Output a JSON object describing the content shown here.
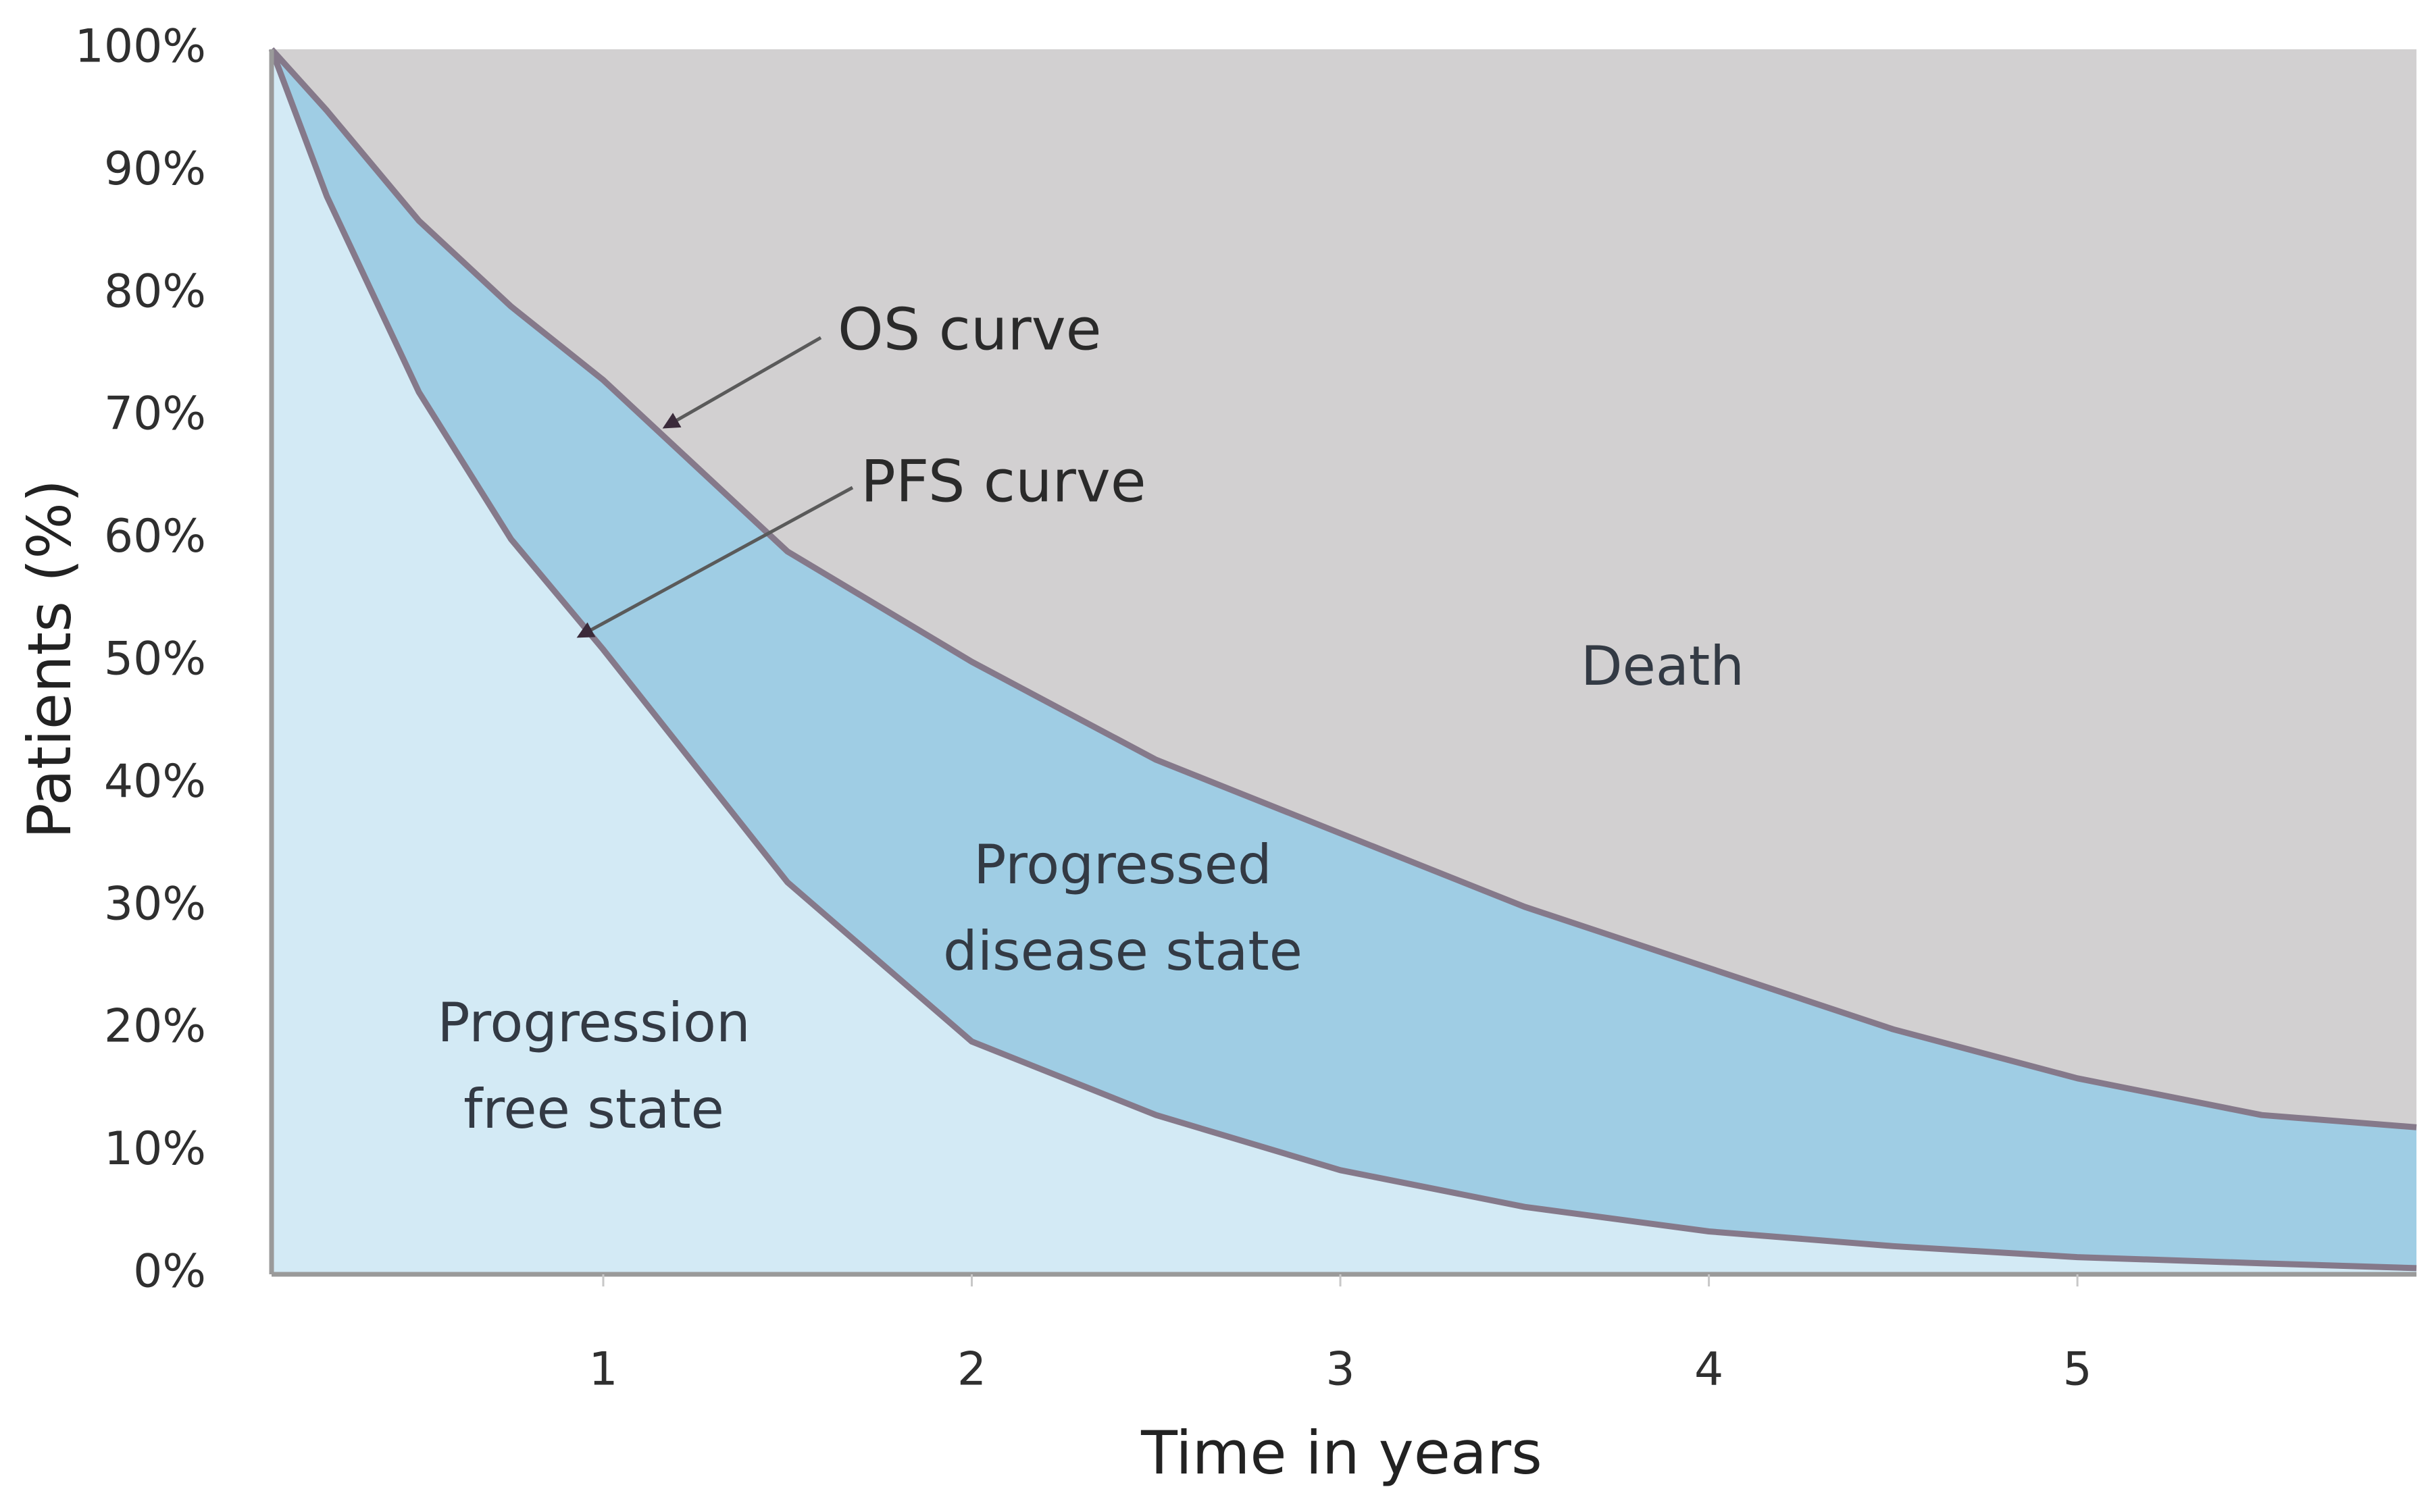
{
  "chart_data": {
    "type": "area",
    "x_label": "Time in years",
    "y_label": "Patients (%)",
    "x": [
      0.1,
      0.25,
      0.5,
      0.75,
      1,
      1.5,
      2,
      2.5,
      3,
      3.5,
      4,
      4.5,
      5,
      5.5,
      5.92
    ],
    "series": [
      {
        "name": "OS curve",
        "color": "#9fcde4",
        "values": [
          100,
          95,
          86,
          79,
          73,
          59,
          50,
          42,
          36,
          30,
          25,
          20,
          16,
          13,
          12
        ]
      },
      {
        "name": "PFS curve",
        "color": "#d3eaf5",
        "values": [
          100,
          88,
          72,
          60,
          51,
          32,
          19,
          13,
          8.5,
          5.5,
          3.5,
          2.3,
          1.4,
          0.9,
          0.5
        ]
      }
    ],
    "background": "#d2d0d1",
    "line_color": "#85798a",
    "area_labels": [
      [
        "Progression",
        "free state"
      ],
      [
        "Progressed",
        "disease state"
      ],
      [
        "Death"
      ]
    ],
    "xlim": [
      0.1,
      5.92
    ],
    "ylim": [
      0,
      100
    ],
    "xticks": [
      1,
      2,
      3,
      4,
      5
    ],
    "yticks": [
      {
        "value": 0,
        "label": "0%"
      },
      {
        "value": 10,
        "label": "10%"
      },
      {
        "value": 20,
        "label": "20%"
      },
      {
        "value": 30,
        "label": "30%"
      },
      {
        "value": 40,
        "label": "40%"
      },
      {
        "value": 50,
        "label": "50%"
      },
      {
        "value": 60,
        "label": "60%"
      },
      {
        "value": 70,
        "label": "70%"
      },
      {
        "value": 80,
        "label": "80%"
      },
      {
        "value": 90,
        "label": "90%"
      },
      {
        "value": 100,
        "label": "100%"
      }
    ],
    "grid": false
  }
}
